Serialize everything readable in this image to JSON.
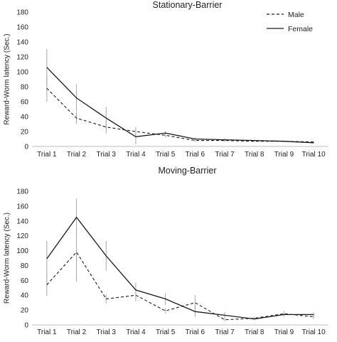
{
  "chart_data": [
    {
      "type": "line",
      "title": "Stationary-Barrier",
      "ylabel": "Reward-Worm latency (Sec.)",
      "xlabel": "",
      "categories": [
        "Trial 1",
        "Trial 2",
        "Trial 3",
        "Trial 4",
        "Trial 5",
        "Trial 6",
        "Trial 7",
        "Trial 8",
        "Trial 9",
        "Trial 10"
      ],
      "yticks": [
        "0",
        "20",
        "40",
        "60",
        "80",
        "100",
        "120",
        "140",
        "160",
        "180"
      ],
      "ylim": [
        0,
        180
      ],
      "legend_position": "top-right",
      "series": [
        {
          "name": "Male",
          "style": "dashed",
          "values": [
            78,
            38,
            26,
            20,
            15,
            8,
            8,
            7,
            7,
            6
          ],
          "error": [
            18,
            8,
            8,
            6,
            3,
            2,
            2,
            1,
            1,
            1
          ]
        },
        {
          "name": "Female",
          "style": "solid",
          "values": [
            106,
            65,
            38,
            13,
            18,
            10,
            9,
            8,
            7,
            5
          ],
          "error": [
            24,
            18,
            15,
            10,
            3,
            2,
            2,
            1,
            1,
            1
          ]
        }
      ]
    },
    {
      "type": "line",
      "title": "Moving-Barrier",
      "ylabel": "Reward-Worm latency (Sec.)",
      "xlabel": "",
      "categories": [
        "Trial 1",
        "Trial 2",
        "Trial 3",
        "Trial 4",
        "Trial 5",
        "Trial 6",
        "Trial 7",
        "Trial 8",
        "Trial 9",
        "Trial 10"
      ],
      "yticks": [
        "0",
        "20",
        "40",
        "60",
        "80",
        "100",
        "120",
        "140",
        "160",
        "180"
      ],
      "ylim": [
        0,
        180
      ],
      "legend_position": "none",
      "series": [
        {
          "name": "Male",
          "style": "dashed",
          "values": [
            54,
            98,
            35,
            40,
            19,
            30,
            7,
            9,
            15,
            11
          ],
          "error": [
            15,
            40,
            6,
            8,
            4,
            10,
            2,
            2,
            4,
            3
          ]
        },
        {
          "name": "Female",
          "style": "solid",
          "values": [
            89,
            145,
            93,
            47,
            35,
            18,
            13,
            8,
            14,
            14
          ],
          "error": [
            24,
            25,
            20,
            10,
            8,
            7,
            4,
            2,
            3,
            3
          ]
        }
      ]
    }
  ]
}
